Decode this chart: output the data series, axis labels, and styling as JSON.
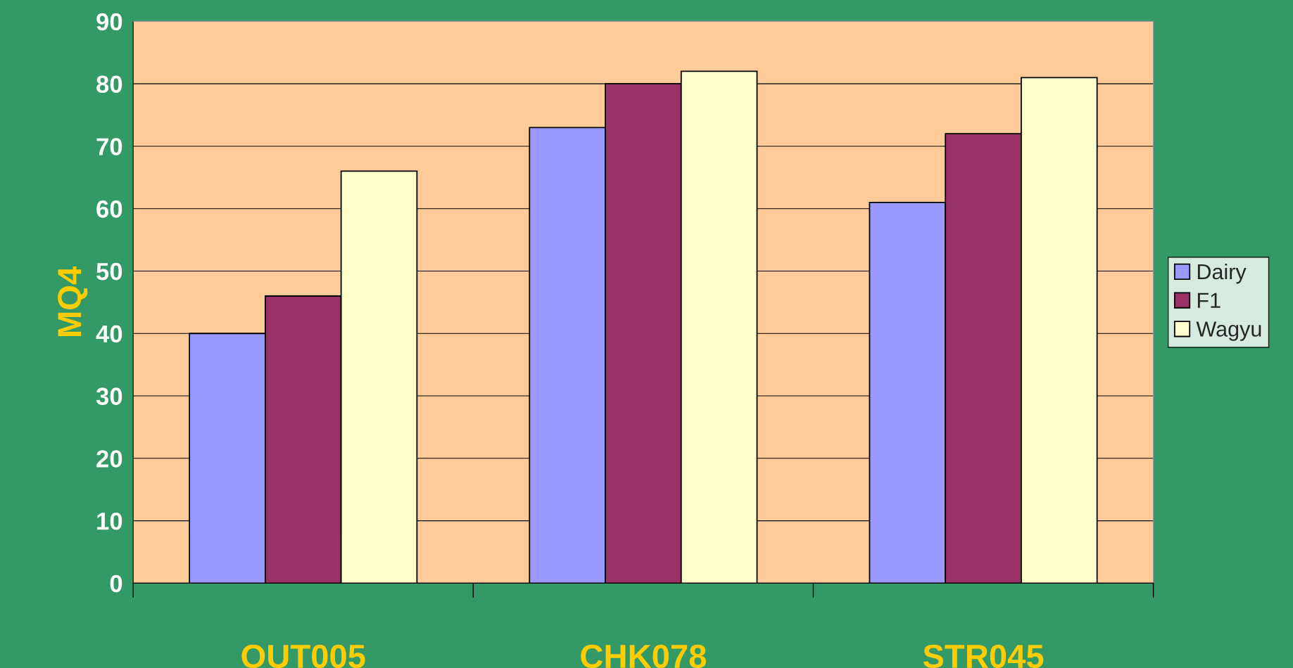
{
  "chart_data": {
    "type": "bar",
    "ylabel": "MQ4",
    "categories": [
      "OUT005",
      "CHK078",
      "STR045"
    ],
    "series": [
      {
        "name": "Dairy",
        "color": "#9999ff",
        "values": [
          40,
          73,
          61
        ]
      },
      {
        "name": "F1",
        "color": "#993366",
        "values": [
          46,
          80,
          72
        ]
      },
      {
        "name": "Wagyu",
        "color": "#ffffcc",
        "values": [
          66,
          82,
          81
        ]
      }
    ],
    "ylim": [
      0,
      90
    ],
    "yticks": [
      0,
      10,
      20,
      30,
      40,
      50,
      60,
      70,
      80,
      90
    ],
    "grid": "y",
    "legend": "right"
  }
}
